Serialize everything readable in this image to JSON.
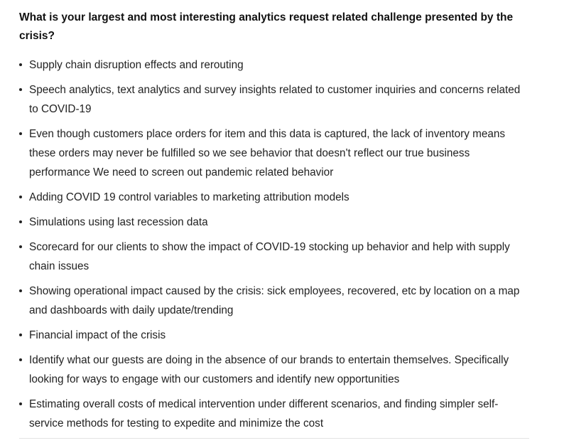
{
  "question": "What is your largest and most interesting analytics request related challenge presented by the crisis?",
  "answers": [
    "Supply chain disruption effects and rerouting",
    "Speech analytics, text analytics and survey insights related to customer inquiries and concerns related to COVID-19",
    "Even though customers place orders for item and this data is captured, the lack of inventory means these orders may never be fulfilled so we see behavior that doesn't reflect our true business performance We need to screen out pandemic related behavior",
    "Adding COVID 19 control variables to marketing attribution models",
    "Simulations using last recession data",
    "Scorecard for our clients to show the impact of COVID-19 stocking up behavior and help with supply chain issues",
    "Showing operational impact caused by the crisis: sick employees, recovered, etc by location on a map and dashboards with daily update/trending",
    "Financial impact of the crisis",
    "Identify what our guests are doing in the absence of our brands to entertain themselves. Specifically looking for ways to engage with our customers and identify new opportunities",
    "Estimating overall costs of medical intervention under different scenarios, and finding simpler self-service methods for testing to expedite and minimize the cost"
  ]
}
